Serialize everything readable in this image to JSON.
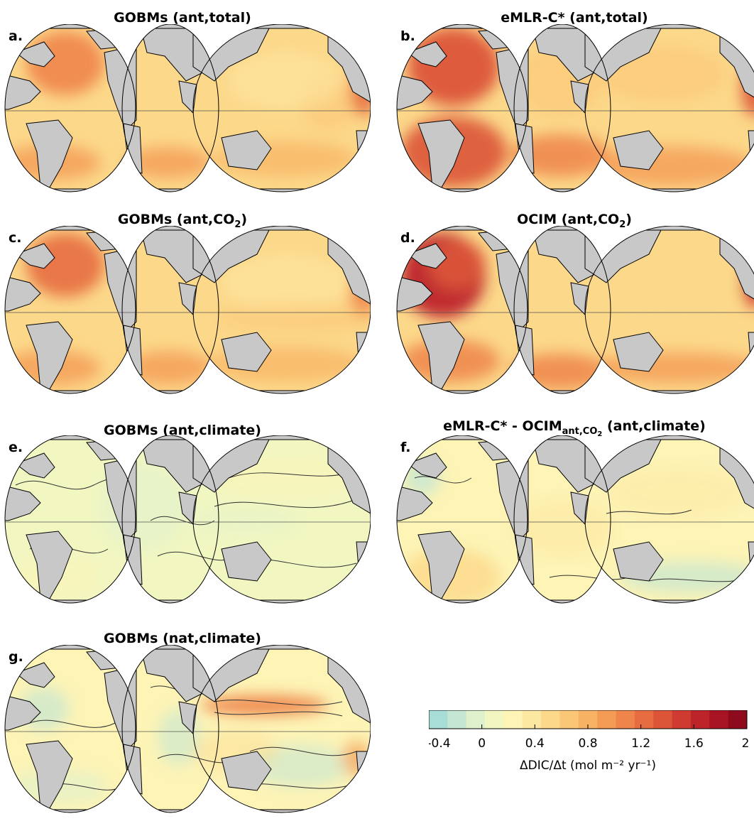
{
  "panels": [
    {
      "id": "a",
      "letter": "a.",
      "title_main": "GOBMs (ant,total)",
      "title_sub": "",
      "title_after": "",
      "style": "total"
    },
    {
      "id": "b",
      "letter": "b.",
      "title_main": "eMLR-C* (ant,total)",
      "title_sub": "",
      "title_after": "",
      "style": "emlr"
    },
    {
      "id": "c",
      "letter": "c.",
      "title_main": "GOBMs (ant,CO",
      "title_sub": "2",
      "title_after": ")",
      "style": "co2"
    },
    {
      "id": "d",
      "letter": "d.",
      "title_main": "OCIM (ant,CO",
      "title_sub": "2",
      "title_after": ")",
      "style": "ocim"
    },
    {
      "id": "e",
      "letter": "e.",
      "title_main": "GOBMs (ant,climate)",
      "title_sub": "",
      "title_after": "",
      "style": "climate"
    },
    {
      "id": "f",
      "letter": "f.",
      "title_main": "eMLR-C* - OCIM",
      "title_sub": "ant,CO2",
      "title_after": " (ant,climate)",
      "style": "diff"
    },
    {
      "id": "g",
      "letter": "g.",
      "title_main": "GOBMs (nat,climate)",
      "title_sub": "",
      "title_after": "",
      "style": "nat"
    }
  ],
  "colorbar": {
    "min": -0.4,
    "max": 2,
    "ticks": [
      "-0.4",
      "0",
      "0.4",
      "0.8",
      "1.2",
      "1.6",
      "2"
    ],
    "label": "ΔDIC/Δt (mol m⁻² yr⁻¹)",
    "colors": [
      "#a8dcd6",
      "#c4e6d2",
      "#dff0cc",
      "#f2f7c2",
      "#fdf4b6",
      "#fde8a2",
      "#fcd88a",
      "#fbc676",
      "#f8b263",
      "#f49c56",
      "#ef854b",
      "#e76d41",
      "#dc5538",
      "#cf3b30",
      "#bd242a",
      "#a81423",
      "#8e0a1d"
    ],
    "colors_note": "diverging scale cool to dark red"
  },
  "colors": {
    "land": "#c8c8c8",
    "coastline": "#000000",
    "background": "#ffffff"
  }
}
